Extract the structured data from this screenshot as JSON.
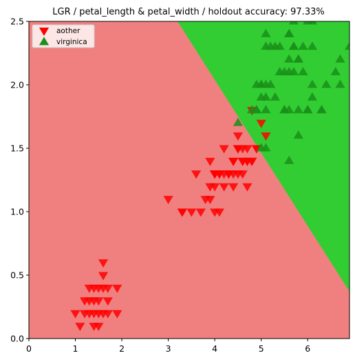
{
  "chart_data": {
    "type": "scatter",
    "title": "LGR / petal_length & petal_width / holdout accuracy: 97.33%",
    "xlabel": "",
    "ylabel": "",
    "xlim": [
      0,
      6.9
    ],
    "ylim": [
      0,
      2.5
    ],
    "x_ticks": [
      "0",
      "1",
      "2",
      "3",
      "4",
      "5",
      "6"
    ],
    "y_ticks": [
      "0.0",
      "0.5",
      "1.0",
      "1.5",
      "2.0",
      "2.5"
    ],
    "grid": false,
    "legend_position": "top-left",
    "decision_regions": {
      "aother_color": "#f08080",
      "virginica_color": "#32cd32",
      "boundary_line": [
        [
          3.2,
          2.5
        ],
        [
          6.9,
          0.37
        ]
      ]
    },
    "series": [
      {
        "name": "aother",
        "marker": "triangle-down",
        "color": "#ff0000",
        "points": [
          [
            1.4,
            0.2
          ],
          [
            1.3,
            0.2
          ],
          [
            1.5,
            0.2
          ],
          [
            1.7,
            0.4
          ],
          [
            1.4,
            0.3
          ],
          [
            1.5,
            0.1
          ],
          [
            1.6,
            0.2
          ],
          [
            1.1,
            0.1
          ],
          [
            1.2,
            0.2
          ],
          [
            1.3,
            0.4
          ],
          [
            1.7,
            0.3
          ],
          [
            1.0,
            0.2
          ],
          [
            1.9,
            0.4
          ],
          [
            1.6,
            0.4
          ],
          [
            1.4,
            0.1
          ],
          [
            1.6,
            0.6
          ],
          [
            1.9,
            0.2
          ],
          [
            1.3,
            0.3
          ],
          [
            1.5,
            0.4
          ],
          [
            1.6,
            0.5
          ],
          [
            1.2,
            0.3
          ],
          [
            1.5,
            0.3
          ],
          [
            1.4,
            0.4
          ],
          [
            1.7,
            0.2
          ],
          [
            4.7,
            1.4
          ],
          [
            4.5,
            1.5
          ],
          [
            4.9,
            1.5
          ],
          [
            4.0,
            1.3
          ],
          [
            4.6,
            1.5
          ],
          [
            3.3,
            1.0
          ],
          [
            4.6,
            1.3
          ],
          [
            3.9,
            1.4
          ],
          [
            3.5,
            1.0
          ],
          [
            4.2,
            1.5
          ],
          [
            4.0,
            1.0
          ],
          [
            4.7,
            1.4
          ],
          [
            3.6,
            1.3
          ],
          [
            4.4,
            1.4
          ],
          [
            4.5,
            1.5
          ],
          [
            4.1,
            1.0
          ],
          [
            4.5,
            1.5
          ],
          [
            3.9,
            1.1
          ],
          [
            4.8,
            1.8
          ],
          [
            4.0,
            1.3
          ],
          [
            4.9,
            1.5
          ],
          [
            4.7,
            1.2
          ],
          [
            4.3,
            1.3
          ],
          [
            4.4,
            1.4
          ],
          [
            4.8,
            1.4
          ],
          [
            5.0,
            1.7
          ],
          [
            4.5,
            1.5
          ],
          [
            3.8,
            1.1
          ],
          [
            3.7,
            1.0
          ],
          [
            3.9,
            1.2
          ],
          [
            5.1,
            1.6
          ],
          [
            4.5,
            1.6
          ],
          [
            4.7,
            1.5
          ],
          [
            4.4,
            1.3
          ],
          [
            4.1,
            1.3
          ],
          [
            4.0,
            1.3
          ],
          [
            4.4,
            1.2
          ],
          [
            4.6,
            1.4
          ],
          [
            4.0,
            1.2
          ],
          [
            3.3,
            1.0
          ],
          [
            4.2,
            1.3
          ],
          [
            4.2,
            1.2
          ],
          [
            4.3,
            1.3
          ],
          [
            3.0,
            1.1
          ],
          [
            4.1,
            1.3
          ],
          [
            4.6,
            1.4
          ],
          [
            4.8,
            1.4
          ],
          [
            4.5,
            1.3
          ],
          [
            4.9,
            1.5
          ]
        ]
      },
      {
        "name": "virginica",
        "marker": "triangle-up",
        "color": "#1a8f1a",
        "points": [
          [
            6.0,
            2.5
          ],
          [
            5.1,
            1.9
          ],
          [
            5.9,
            2.1
          ],
          [
            5.6,
            1.8
          ],
          [
            5.8,
            2.2
          ],
          [
            6.6,
            2.1
          ],
          [
            4.5,
            1.7
          ],
          [
            6.3,
            1.8
          ],
          [
            5.8,
            1.8
          ],
          [
            6.1,
            2.5
          ],
          [
            5.1,
            2.0
          ],
          [
            5.3,
            1.9
          ],
          [
            5.5,
            2.1
          ],
          [
            5.0,
            2.0
          ],
          [
            5.1,
            2.4
          ],
          [
            5.3,
            2.3
          ],
          [
            5.5,
            1.8
          ],
          [
            6.7,
            2.2
          ],
          [
            6.9,
            2.3
          ],
          [
            5.0,
            1.5
          ],
          [
            5.7,
            2.3
          ],
          [
            4.9,
            2.0
          ],
          [
            6.7,
            2.0
          ],
          [
            4.9,
            1.8
          ],
          [
            5.7,
            2.1
          ],
          [
            6.0,
            1.8
          ],
          [
            4.8,
            1.8
          ],
          [
            4.9,
            1.8
          ],
          [
            5.6,
            2.1
          ],
          [
            5.8,
            1.6
          ],
          [
            6.1,
            1.9
          ],
          [
            6.4,
            2.0
          ],
          [
            5.6,
            2.2
          ],
          [
            5.1,
            1.5
          ],
          [
            5.6,
            1.4
          ],
          [
            6.1,
            2.3
          ],
          [
            5.6,
            2.4
          ],
          [
            5.5,
            1.8
          ],
          [
            5.4,
            2.1
          ],
          [
            5.6,
            2.4
          ],
          [
            5.1,
            2.3
          ],
          [
            5.9,
            2.3
          ],
          [
            5.7,
            2.5
          ],
          [
            5.2,
            2.3
          ],
          [
            5.0,
            1.9
          ],
          [
            5.2,
            2.0
          ],
          [
            5.4,
            2.3
          ],
          [
            5.1,
            1.8
          ],
          [
            6.3,
            1.8
          ],
          [
            6.1,
            2.0
          ],
          [
            5.8,
            2.2
          ],
          [
            5.0,
            2.0
          ],
          [
            5.7,
            2.3
          ],
          [
            6.0,
            1.8
          ]
        ]
      }
    ]
  }
}
